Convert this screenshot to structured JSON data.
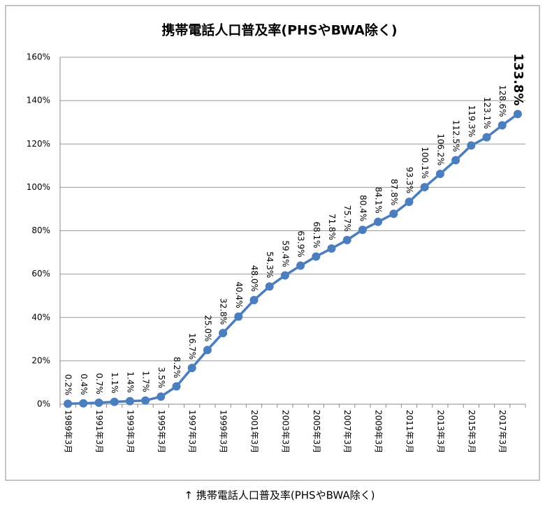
{
  "chart_data": {
    "type": "line",
    "title": "携帯電話人口普及率(PHSやBWA除く)",
    "caption": "↑ 携帯電話人口普及率(PHSやBWA除く)",
    "categories": [
      "1989年3月",
      null,
      "1991年3月",
      null,
      "1993年3月",
      null,
      "1995年3月",
      null,
      "1997年3月",
      null,
      "1999年3月",
      null,
      "2001年3月",
      null,
      "2003年3月",
      null,
      "2005年3月",
      null,
      "2007年3月",
      null,
      "2009年3月",
      null,
      "2011年3月",
      null,
      "2013年3月",
      null,
      "2015年3月",
      null,
      "2017年3月",
      null
    ],
    "values": [
      0.2,
      0.4,
      0.7,
      1.1,
      1.4,
      1.7,
      3.5,
      8.2,
      16.7,
      25.0,
      32.8,
      40.4,
      48.0,
      54.3,
      59.4,
      63.9,
      68.1,
      71.8,
      75.7,
      80.4,
      84.1,
      87.8,
      93.3,
      100.1,
      106.2,
      112.5,
      119.3,
      123.1,
      128.6,
      133.8
    ],
    "value_labels": [
      "0.2%",
      "0.4%",
      "0.7%",
      "1.1%",
      "1.4%",
      "1.7%",
      "3.5%",
      "8.2%",
      "16.7%",
      "25.0%",
      "32.8%",
      "40.4%",
      "48.0%",
      "54.3%",
      "59.4%",
      "63.9%",
      "68.1%",
      "71.8%",
      "75.7%",
      "80.4%",
      "84.1%",
      "87.8%",
      "93.3%",
      "100.1%",
      "106.2%",
      "112.5%",
      "119.3%",
      "123.1%",
      "128.6%",
      "133.8%"
    ],
    "color": "#4a7ebf",
    "ylim": [
      0,
      160
    ],
    "yticks": [
      {
        "value": 0,
        "label": "0%"
      },
      {
        "value": 20,
        "label": "20%"
      },
      {
        "value": 40,
        "label": "40%"
      },
      {
        "value": 60,
        "label": "60%"
      },
      {
        "value": 80,
        "label": "80%"
      },
      {
        "value": 100,
        "label": "100%"
      },
      {
        "value": 120,
        "label": "120%"
      },
      {
        "value": 140,
        "label": "140%"
      },
      {
        "value": 160,
        "label": "160%"
      }
    ],
    "grid": true
  }
}
